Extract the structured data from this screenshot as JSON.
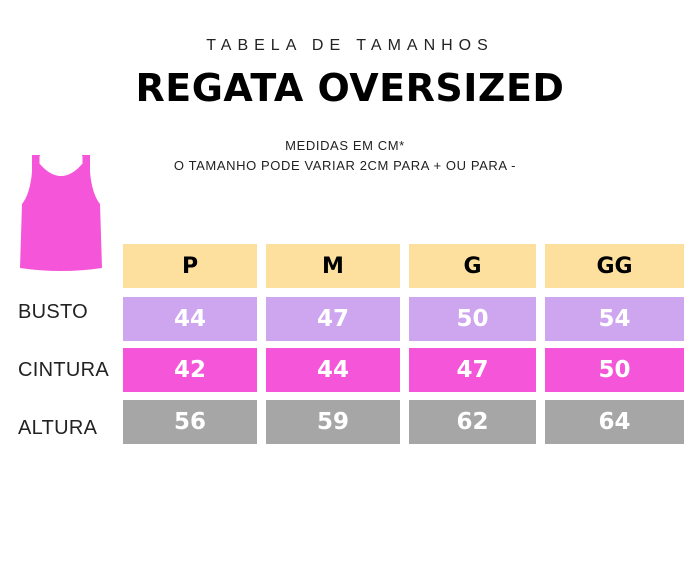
{
  "header": {
    "subtitle": "TABELA DE TAMANHOS",
    "title": "REGATA OVERSIZED",
    "note_line1": "MEDIDAS EM CM*",
    "note_line2": "O TAMANHO PODE VARIAR 2CM PARA + OU PARA -"
  },
  "illustration": {
    "icon": "tank-top-icon",
    "color": "#f556d9"
  },
  "table": {
    "sizes": [
      "P",
      "M",
      "G",
      "GG"
    ],
    "rows": [
      {
        "label": "BUSTO",
        "values": [
          "44",
          "47",
          "50",
          "54"
        ],
        "color": "#cea6ef"
      },
      {
        "label": "CINTURA",
        "values": [
          "42",
          "44",
          "47",
          "50"
        ],
        "color": "#f556d9"
      },
      {
        "label": "ALTURA",
        "values": [
          "56",
          "59",
          "62",
          "64"
        ],
        "color": "#a6a6a6"
      }
    ],
    "header_color": "#fde09e"
  }
}
